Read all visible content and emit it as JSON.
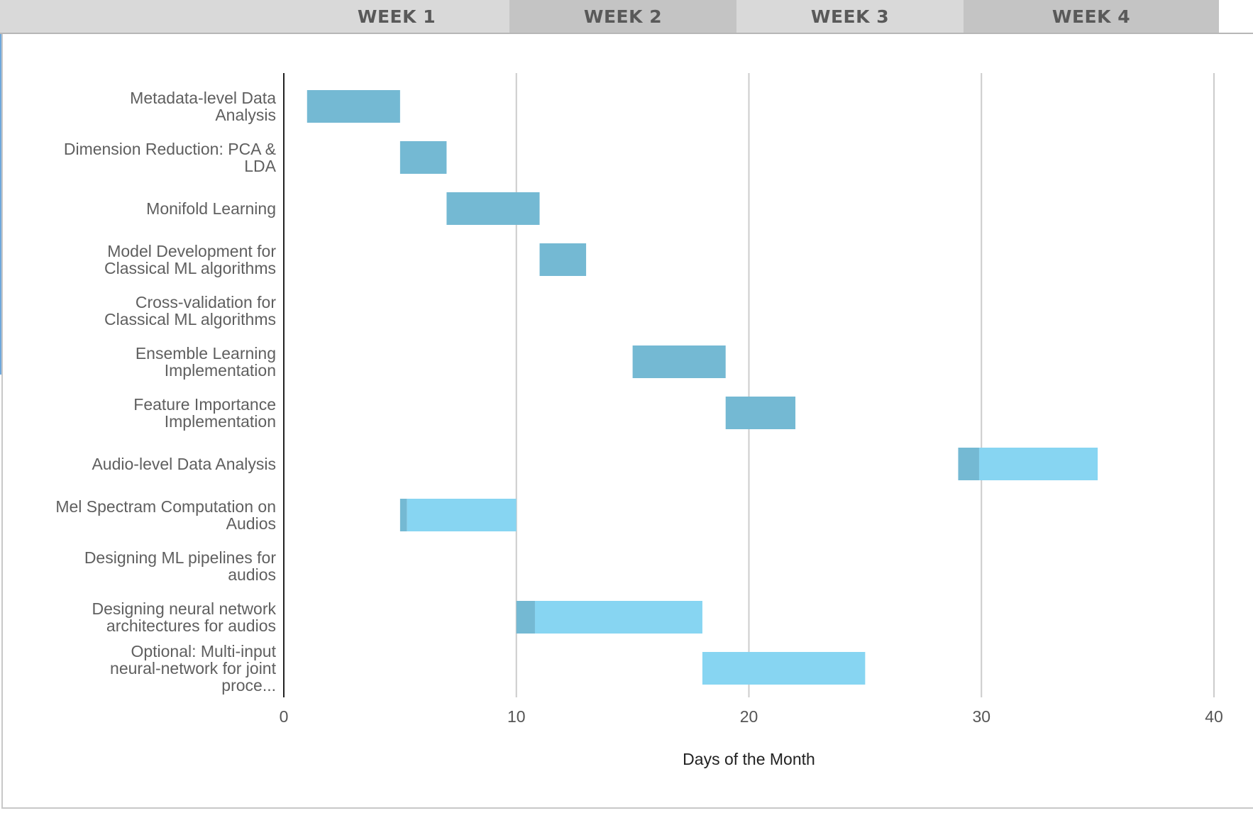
{
  "header": {
    "weeks": [
      {
        "label": "WEEK 1",
        "bg": "#d9d9d9"
      },
      {
        "label": "WEEK 2",
        "bg": "#c4c4c4"
      },
      {
        "label": "WEEK 3",
        "bg": "#d9d9d9"
      },
      {
        "label": "WEEK 4",
        "bg": "#c4c4c4"
      }
    ]
  },
  "chart_data": {
    "type": "bar",
    "orientation": "horizontal",
    "xlabel": "Days of the Month",
    "xlim": [
      0,
      40
    ],
    "xticks": [
      "0",
      "10",
      "20",
      "30",
      "40"
    ],
    "grid": true,
    "colors": {
      "dark": "#74b9d3",
      "light": "#87d5f2"
    },
    "tasks": [
      {
        "label": "Metadata-level Data Analysis",
        "segments": [
          {
            "start": 1,
            "end": 5,
            "tone": "dark"
          }
        ]
      },
      {
        "label": "Dimension Reduction: PCA & LDA",
        "segments": [
          {
            "start": 5,
            "end": 7,
            "tone": "dark"
          }
        ]
      },
      {
        "label": "Monifold Learning",
        "segments": [
          {
            "start": 7,
            "end": 11,
            "tone": "dark"
          }
        ]
      },
      {
        "label": "Model Development for Classical ML algorithms",
        "segments": [
          {
            "start": 11,
            "end": 13,
            "tone": "dark"
          }
        ]
      },
      {
        "label": "Cross-validation for Classical ML algorithms",
        "segments": []
      },
      {
        "label": "Ensemble Learning Implementation",
        "segments": [
          {
            "start": 15,
            "end": 19,
            "tone": "dark"
          }
        ]
      },
      {
        "label": "Feature Importance Implementation",
        "segments": [
          {
            "start": 19,
            "end": 22,
            "tone": "dark"
          }
        ]
      },
      {
        "label": "Audio-level Data Analysis",
        "segments": [
          {
            "start": 29,
            "end": 29.9,
            "tone": "dark"
          },
          {
            "start": 29.9,
            "end": 35,
            "tone": "light"
          }
        ]
      },
      {
        "label": "Mel Spectram Computation on Audios",
        "segments": [
          {
            "start": 5,
            "end": 5.3,
            "tone": "dark"
          },
          {
            "start": 5.3,
            "end": 10,
            "tone": "light"
          }
        ]
      },
      {
        "label": "Designing ML pipelines for audios",
        "segments": []
      },
      {
        "label": "Designing neural network architectures for audios",
        "segments": [
          {
            "start": 10,
            "end": 10.8,
            "tone": "dark"
          },
          {
            "start": 10.8,
            "end": 18,
            "tone": "light"
          }
        ]
      },
      {
        "label": "Optional: Multi-input neural-network for joint proce...",
        "segments": [
          {
            "start": 18,
            "end": 25,
            "tone": "light"
          }
        ]
      }
    ]
  }
}
